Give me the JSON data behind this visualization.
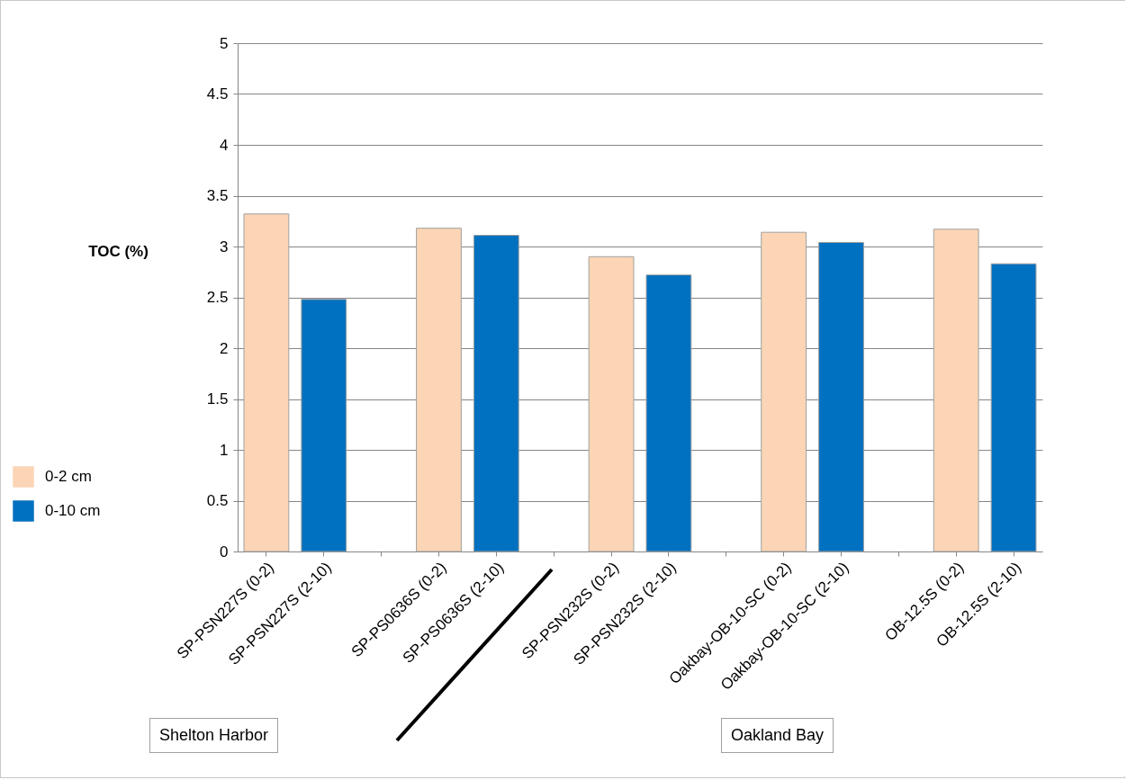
{
  "chart_data": {
    "type": "bar",
    "ylabel": "TOC (%)",
    "categories": [
      "SP-PSN227S (0-2)",
      "SP-PSN227S (2-10)",
      null,
      "SP-PS0636S (0-2)",
      "SP-PS0636S (2-10)",
      null,
      "SP-PSN232S (0-2)",
      "SP-PSN232S (2-10)",
      null,
      "Oakbay-OB-10-SC (0-2)",
      "Oakbay-OB-10-SC (2-10)",
      null,
      "OB-12.5S (0-2)",
      "OB-12.5S (2-10)"
    ],
    "series": [
      {
        "name": "0-2 cm",
        "color": "#fbd5b5",
        "values": [
          3.32,
          null,
          null,
          3.18,
          null,
          null,
          2.9,
          null,
          null,
          3.14,
          null,
          null,
          3.17,
          null
        ]
      },
      {
        "name": "0-10 cm",
        "color": "#0070c0",
        "values": [
          null,
          2.48,
          null,
          null,
          3.11,
          null,
          null,
          2.72,
          null,
          null,
          3.04,
          null,
          null,
          2.83
        ]
      }
    ],
    "ylim": [
      0,
      5
    ],
    "yticks": [
      0,
      0.5,
      1,
      1.5,
      2,
      2.5,
      3,
      3.5,
      4,
      4.5,
      5
    ],
    "grid": "y",
    "legend": "bottom left",
    "annotations": [
      "Shelton Harbor",
      "Oakland Bay"
    ]
  }
}
